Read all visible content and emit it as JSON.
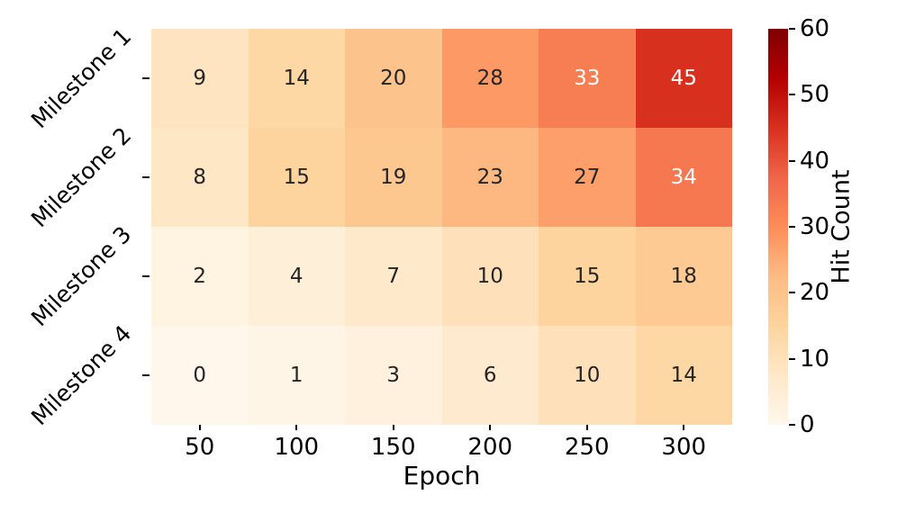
{
  "chart_data": {
    "type": "heatmap",
    "xlabel": "Epoch",
    "x_tick_labels": [
      "50",
      "100",
      "150",
      "200",
      "250",
      "300"
    ],
    "rows": [
      "Milestone 1",
      "Milestone 2",
      "Milestone 3",
      "Milestone 4"
    ],
    "values": [
      [
        9,
        14,
        20,
        28,
        33,
        45
      ],
      [
        8,
        15,
        19,
        23,
        27,
        34
      ],
      [
        2,
        4,
        7,
        10,
        15,
        18
      ],
      [
        0,
        1,
        3,
        6,
        10,
        14
      ]
    ],
    "colorbar": {
      "label": "Hit Count",
      "ticks": [
        0,
        10,
        20,
        30,
        40,
        50,
        60
      ],
      "vmin": 0,
      "vmax": 60,
      "colormap": "OrRd",
      "gradient_stops": [
        {
          "color": "#fff7ec",
          "pos": 0
        },
        {
          "color": "#fee8c8",
          "pos": 12.5
        },
        {
          "color": "#fdd49e",
          "pos": 25
        },
        {
          "color": "#fdbb84",
          "pos": 37.5
        },
        {
          "color": "#fc8d59",
          "pos": 50
        },
        {
          "color": "#ef6548",
          "pos": 62.5
        },
        {
          "color": "#d7301f",
          "pos": 75
        },
        {
          "color": "#b30000",
          "pos": 87.5
        },
        {
          "color": "#7f0000",
          "pos": 100
        }
      ]
    },
    "cell_colors": [
      [
        "#fee4c0",
        "#fdd7a4",
        "#fdc38d",
        "#fc9965",
        "#f77d52",
        "#d7301f"
      ],
      [
        "#fee7c5",
        "#fdd49e",
        "#fdc790",
        "#fdb881",
        "#fc9f6a",
        "#f57850"
      ],
      [
        "#fff3e2",
        "#feefd9",
        "#fee9ca",
        "#fee1ba",
        "#fdd49e",
        "#fdca94"
      ],
      [
        "#fff7ec",
        "#fff5e7",
        "#fff1de",
        "#feebcf",
        "#fee1ba",
        "#fdd7a4"
      ]
    ],
    "cell_text_colors": [
      [
        "#262626",
        "#262626",
        "#262626",
        "#262626",
        "#ffffff",
        "#ffffff"
      ],
      [
        "#262626",
        "#262626",
        "#262626",
        "#262626",
        "#262626",
        "#ffffff"
      ],
      [
        "#262626",
        "#262626",
        "#262626",
        "#262626",
        "#262626",
        "#262626"
      ],
      [
        "#262626",
        "#262626",
        "#262626",
        "#262626",
        "#262626",
        "#262626"
      ]
    ],
    "grid": false,
    "background": "#ffffff",
    "tick_color": "#000000"
  }
}
